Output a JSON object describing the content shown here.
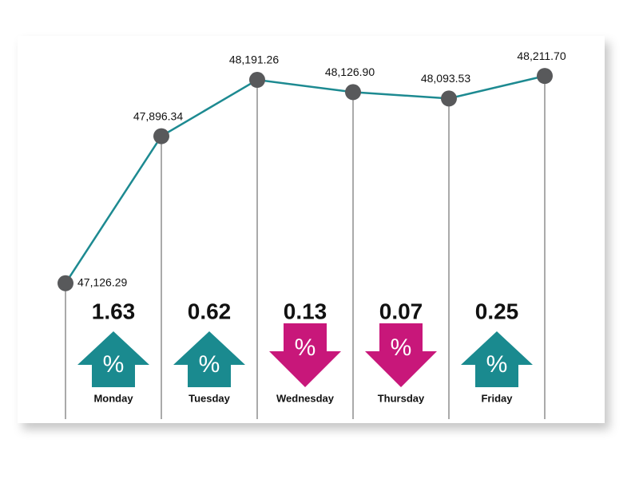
{
  "chart_data": {
    "type": "line",
    "categories": [
      null,
      null,
      null,
      null,
      null,
      null
    ],
    "values": [
      47126.29,
      47896.34,
      48191.26,
      48126.9,
      48093.53,
      48211.7
    ],
    "value_labels": [
      "47,126.29",
      "47,896.34",
      "48,191.26",
      "48,126.90",
      "48,093.53",
      "48,211.70"
    ],
    "color": "#1d8a91",
    "marker_color": "#58595b",
    "ylim": [
      47000,
      48300
    ],
    "change_symbol": "%",
    "days": [
      {
        "name": "Monday",
        "change": 1.63,
        "direction": "up"
      },
      {
        "name": "Tuesday",
        "change": 0.62,
        "direction": "up"
      },
      {
        "name": "Wednesday",
        "change": 0.13,
        "direction": "down"
      },
      {
        "name": "Thursday",
        "change": 0.07,
        "direction": "down"
      },
      {
        "name": "Friday",
        "change": 0.25,
        "direction": "up"
      }
    ],
    "up_color": "#1a8a8f",
    "down_color": "#c8177a"
  }
}
